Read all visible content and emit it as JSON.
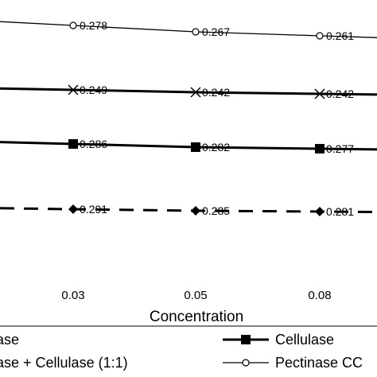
{
  "chart_data": {
    "type": "line",
    "title": "",
    "xlabel": "Concentration",
    "ylabel": "",
    "categories": [
      "0.03",
      "0.05",
      "0.08"
    ],
    "grid": false,
    "legend_position": "bottom",
    "series": [
      {
        "name": "Pectinase CC",
        "values": [
          0.278,
          0.267,
          0.261
        ],
        "labels": [
          "0.278",
          "0.267",
          "0.261"
        ],
        "marker": "open-circle",
        "line_style": "solid-thin",
        "color": "#000000"
      },
      {
        "name": "",
        "values": [
          0.249,
          0.242,
          0.242
        ],
        "labels": [
          "0.249",
          "0.242",
          "0.242"
        ],
        "marker": "x",
        "line_style": "solid-thick",
        "color": "#000000"
      },
      {
        "name": "Cellulase",
        "values": [
          0.286,
          0.282,
          0.277
        ],
        "labels": [
          "0.286",
          "0.282",
          "0.277"
        ],
        "marker": "filled-square",
        "line_style": "solid-thick",
        "color": "#000000"
      },
      {
        "name": "",
        "values": [
          0.291,
          0.285,
          0.281
        ],
        "labels": [
          "0.291",
          "0.285",
          "0.281"
        ],
        "marker": "filled-diamond",
        "line_style": "dashed",
        "color": "#000000"
      }
    ],
    "legend": [
      {
        "text": "ase",
        "style": "none"
      },
      {
        "text": "Cellulase",
        "style": "thick-square"
      },
      {
        "text": "ase + Cellulase (1:1)",
        "style": "none"
      },
      {
        "text": "Pectinase CC",
        "style": "thin-circle"
      }
    ]
  }
}
